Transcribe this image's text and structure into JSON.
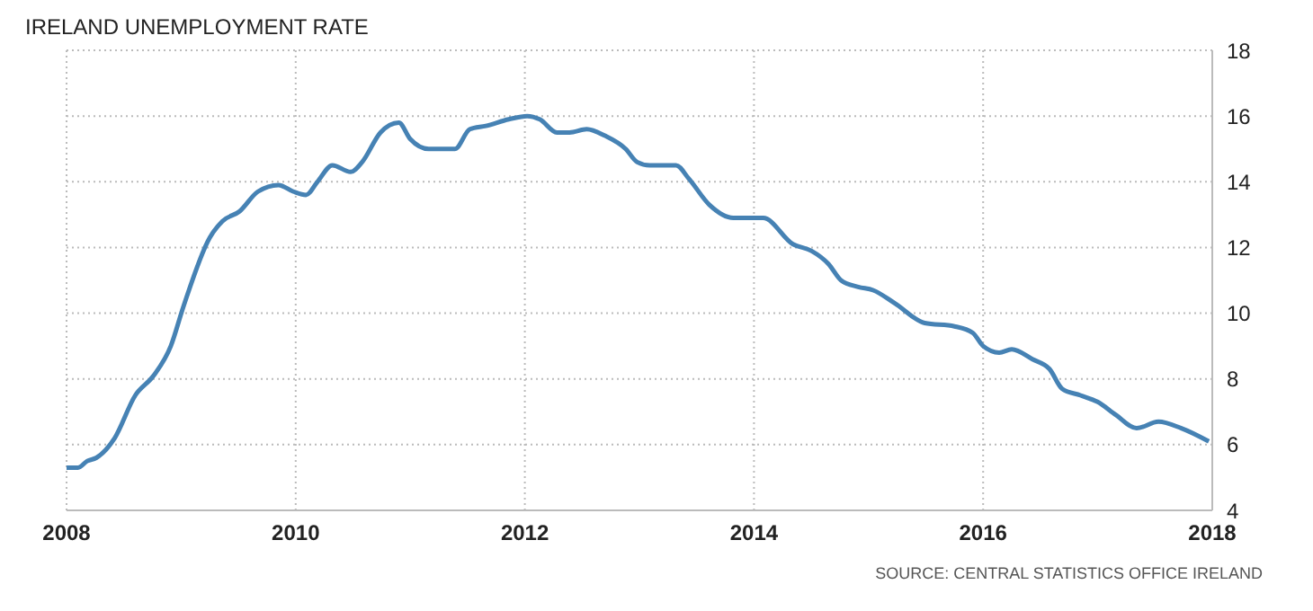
{
  "chart_data": {
    "type": "line",
    "title": "IRELAND UNEMPLOYMENT RATE",
    "annotations": [
      "SOURCE: CENTRAL STATISTICS OFFICE IRELAND"
    ],
    "x": [
      2008,
      2008.1,
      2008.18,
      2008.26,
      2008.42,
      2008.6,
      2008.76,
      2008.91,
      2009.02,
      2009.25,
      2009.36,
      2009.51,
      2009.67,
      2009.85,
      2009.98,
      2010.09,
      2010.19,
      2010.32,
      2010.48,
      2010.58,
      2010.74,
      2010.9,
      2011,
      2011.16,
      2011.39,
      2011.52,
      2011.66,
      2011.86,
      2012.02,
      2012.13,
      2012.28,
      2012.39,
      2012.54,
      2012.7,
      2012.88,
      2012.98,
      2013.09,
      2013.32,
      2013.43,
      2013.61,
      2013.82,
      2014.08,
      2014.34,
      2014.5,
      2014.65,
      2014.76,
      2014.91,
      2015.04,
      2015.23,
      2015.49,
      2015.75,
      2015.91,
      2016,
      2016.14,
      2016.25,
      2016.43,
      2016.58,
      2016.69,
      2016.85,
      2017,
      2017.16,
      2017.34,
      2017.53,
      2017.73,
      2017.97
    ],
    "values": [
      5.3,
      5.3,
      5.5,
      5.6,
      6.2,
      7.5,
      8.1,
      9.0,
      10.2,
      12.3,
      12.8,
      13.1,
      13.7,
      13.9,
      13.7,
      13.6,
      14.0,
      14.5,
      14.3,
      14.6,
      15.5,
      15.8,
      15.3,
      15.0,
      15.0,
      15.6,
      15.7,
      15.9,
      16.0,
      15.9,
      15.5,
      15.5,
      15.6,
      15.4,
      15.0,
      14.6,
      14.5,
      14.5,
      14.1,
      13.3,
      12.9,
      12.9,
      12.1,
      11.9,
      11.5,
      11.0,
      10.8,
      10.7,
      10.3,
      9.7,
      9.6,
      9.4,
      9.0,
      8.8,
      8.9,
      8.6,
      8.3,
      7.7,
      7.5,
      7.3,
      6.9,
      6.5,
      6.7,
      6.5,
      6.1
    ],
    "color": "#4682b4",
    "xlim": [
      2008,
      2018
    ],
    "xticks": [
      2008,
      2010,
      2012,
      2014,
      2016,
      2018
    ],
    "ylim": [
      4,
      18
    ],
    "yticks": [
      4,
      6,
      8,
      10,
      12,
      14,
      16,
      18
    ],
    "grid": true
  }
}
